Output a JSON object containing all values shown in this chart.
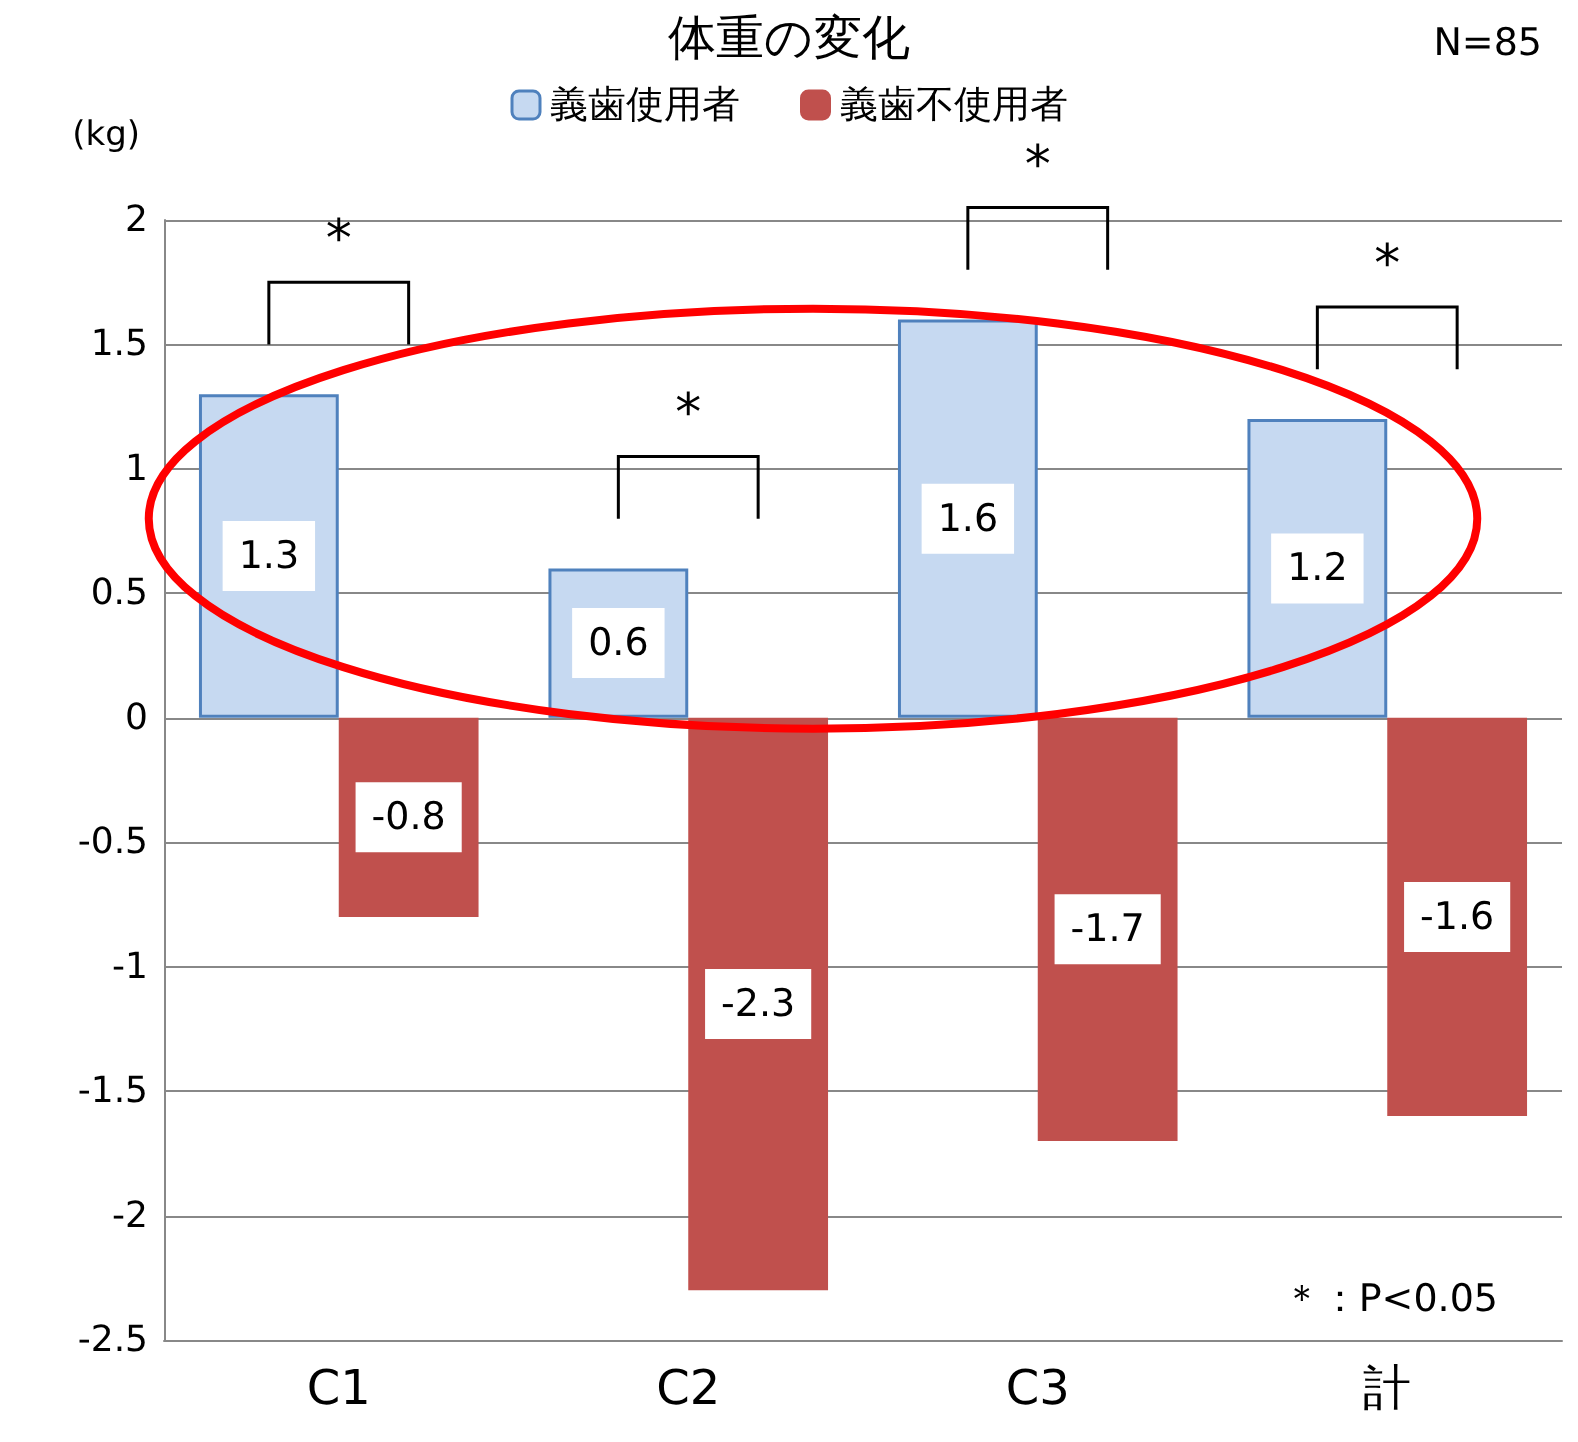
{
  "chart_data": {
    "type": "bar",
    "title": "体重の変化",
    "ylabel": "(kg)",
    "categories": [
      "C1",
      "C2",
      "C3",
      "計"
    ],
    "series": [
      {
        "name": "義歯使用者",
        "color": "#c6d9f1",
        "values": [
          1.3,
          0.6,
          1.6,
          1.2
        ]
      },
      {
        "name": "義歯不使用者",
        "color": "#c0504d",
        "values": [
          -0.8,
          -2.3,
          -1.7,
          -1.6
        ]
      }
    ],
    "ylim": [
      -2.5,
      2
    ],
    "yticks": [
      -2.5,
      -2,
      -1.5,
      -1,
      -0.5,
      0,
      0.5,
      1,
      1.5,
      2
    ],
    "grid": "y",
    "legend": "top",
    "data_labels": true,
    "annotations": [
      "N=85",
      "＊：P<0.05",
      "*",
      "*",
      "*",
      "*"
    ]
  }
}
